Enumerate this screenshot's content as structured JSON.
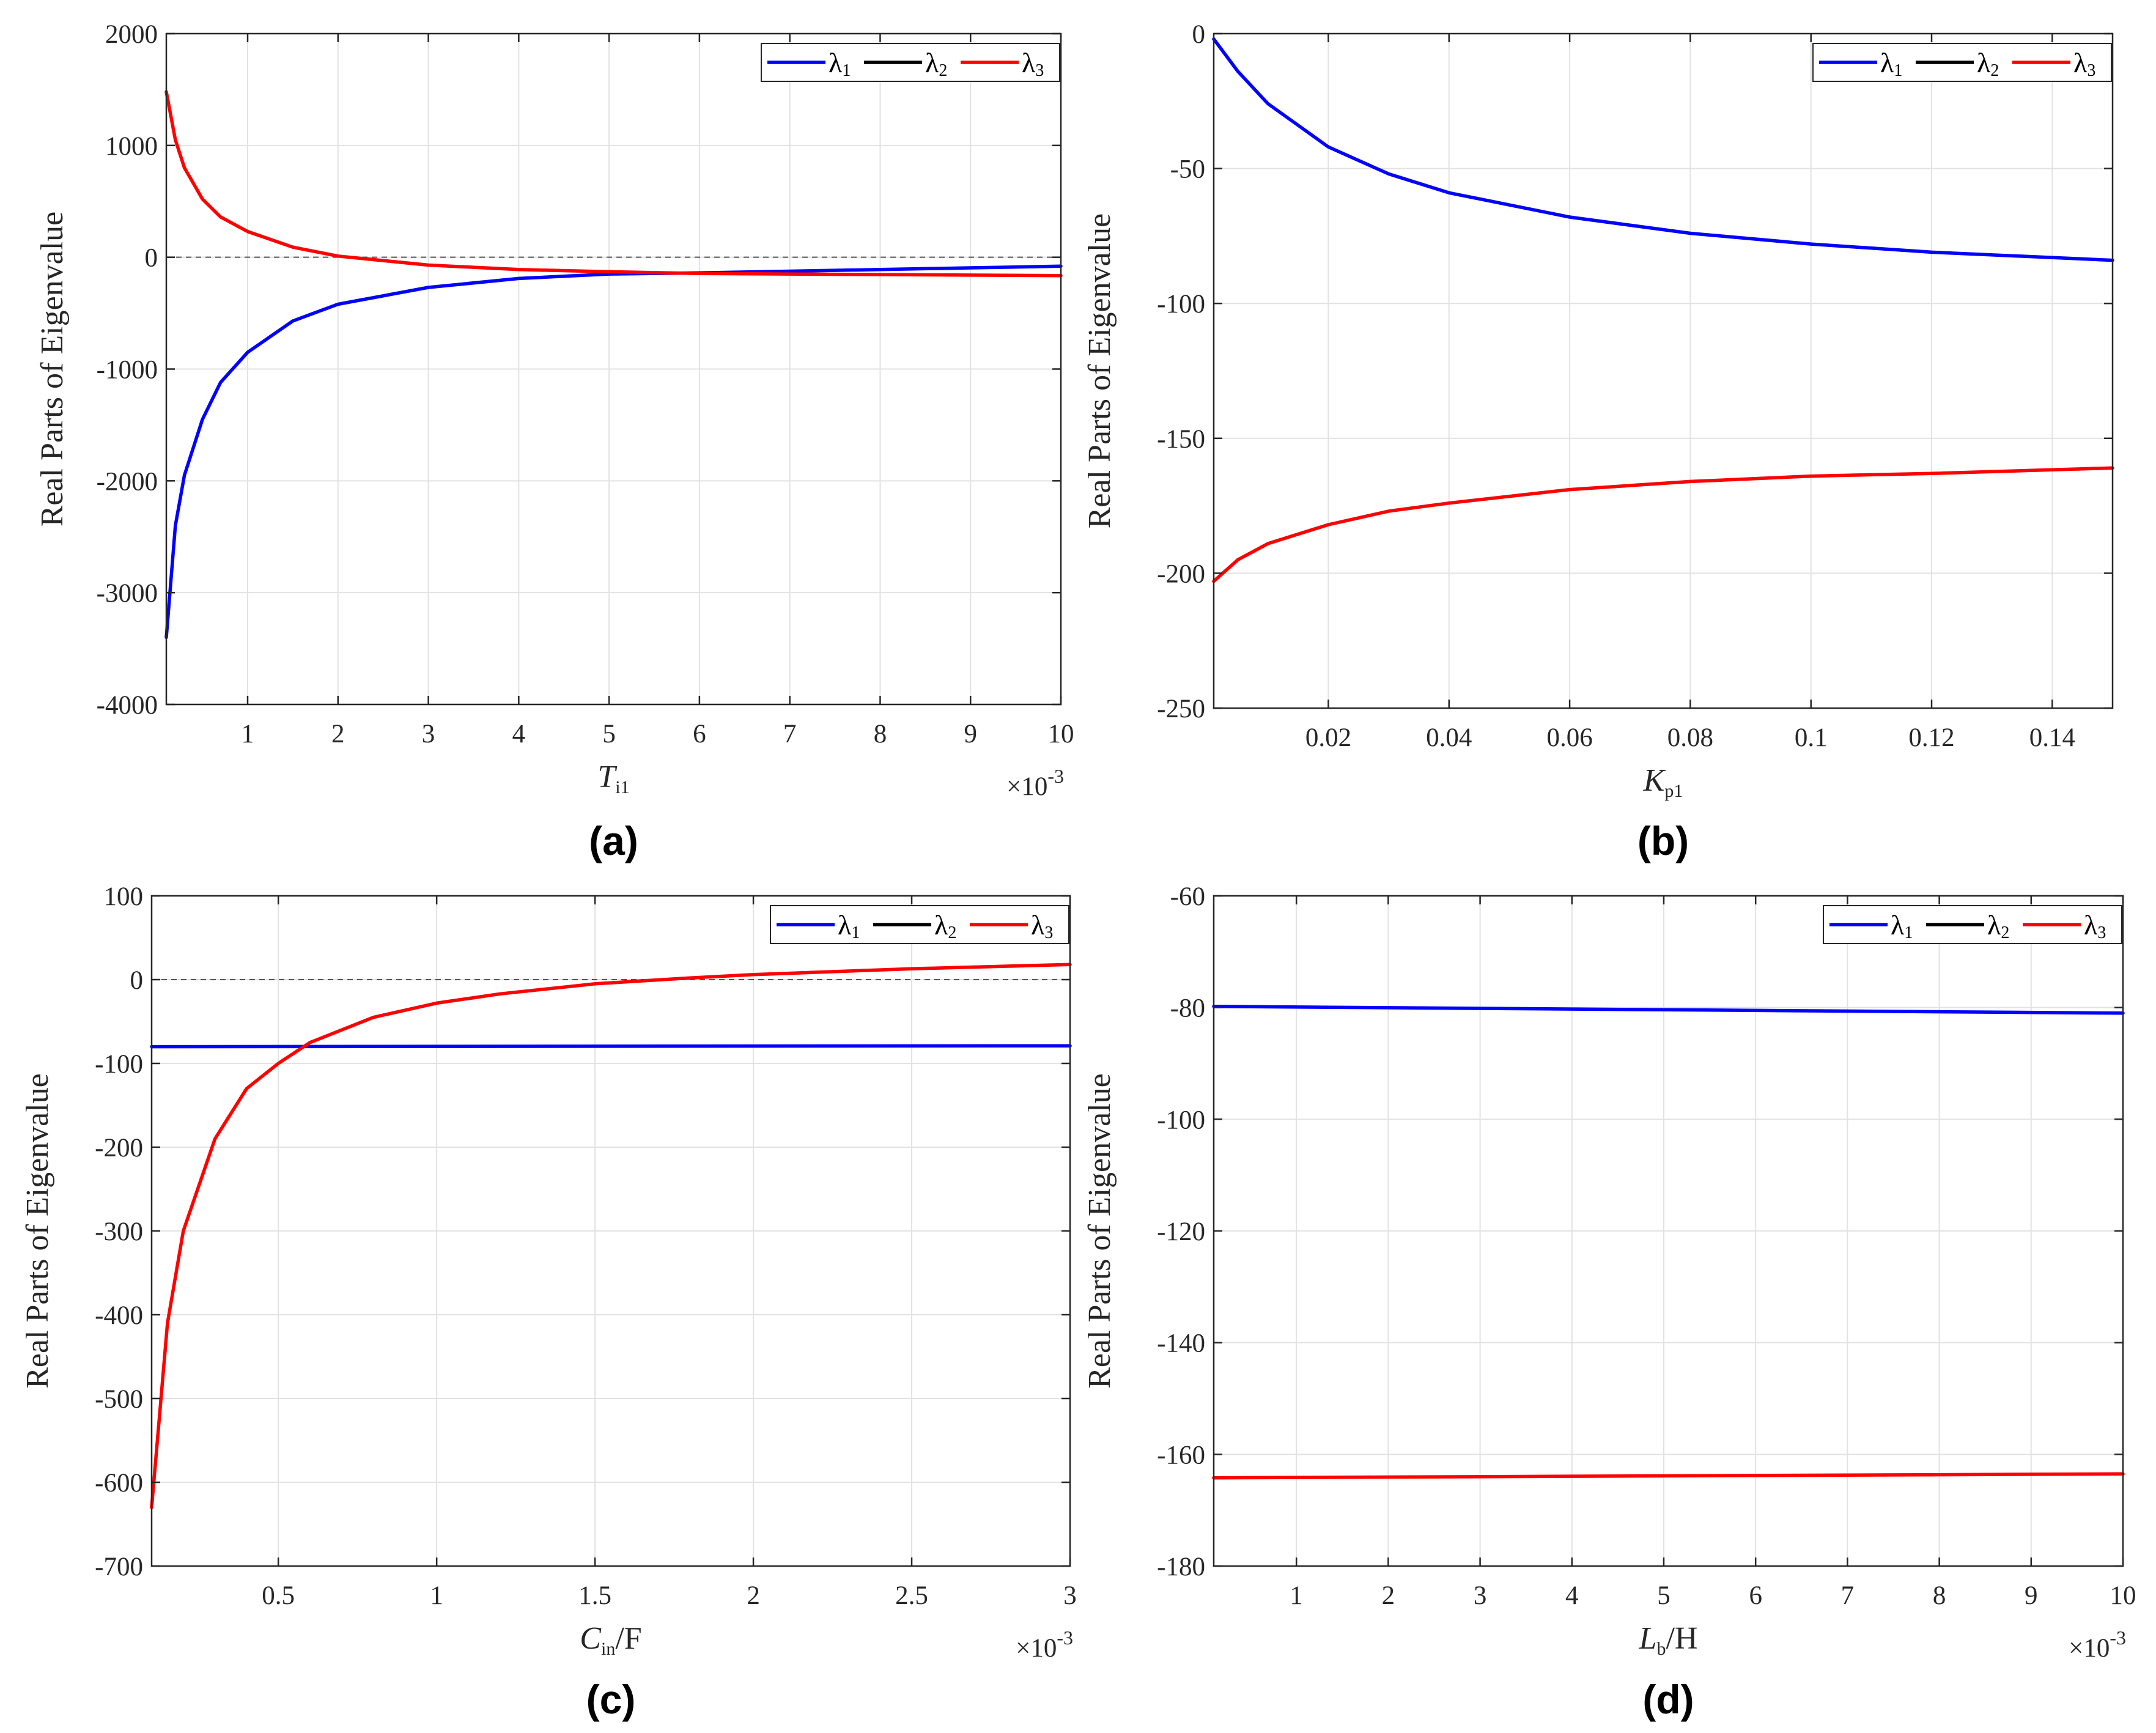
{
  "figure": {
    "y_axis_label": "Real Parts of Eigenvalue",
    "colors": {
      "lambda1": "#0000ff",
      "lambda2": "#000000",
      "lambda3": "#ff0000"
    }
  },
  "chart_data": [
    {
      "type": "line",
      "caption": "(a)",
      "xlabel": {
        "symbol": "T",
        "subscript": "i1",
        "unit": ""
      },
      "ylabel": "Real Parts of Eigenvalue",
      "xlim": [
        0.1,
        10
      ],
      "ylim": [
        -4000,
        2000
      ],
      "x_ticks": [
        1,
        2,
        3,
        4,
        5,
        6,
        7,
        8,
        9,
        10
      ],
      "x_tick_labels": [
        "1",
        "2",
        "3",
        "4",
        "5",
        "6",
        "7",
        "8",
        "9",
        "10"
      ],
      "y_ticks": [
        -4000,
        -3000,
        -2000,
        -1000,
        0,
        1000,
        2000
      ],
      "y_tick_labels": [
        "-4000",
        "-3000",
        "-2000",
        "-1000",
        "0",
        "1000",
        "2000"
      ],
      "multiplier": {
        "base": "×10",
        "exponent": "-3"
      },
      "zero_line": true,
      "legend": {
        "placement": "top-right",
        "entries": [
          "λ1",
          "λ2",
          "λ3"
        ]
      },
      "series": [
        {
          "name": "λ1",
          "color": "#0000ff",
          "x": [
            0.1,
            0.2,
            0.3,
            0.5,
            0.7,
            1,
            1.5,
            2,
            3,
            4,
            5,
            6,
            7,
            8,
            9,
            10
          ],
          "values": [
            -3400,
            -2400,
            -1950,
            -1450,
            -1120,
            -850,
            -570,
            -420,
            -270,
            -190,
            -150,
            -140,
            -125,
            -110,
            -95,
            -80
          ]
        },
        {
          "name": "λ3",
          "color": "#ff0000",
          "x": [
            0.1,
            0.2,
            0.3,
            0.5,
            0.7,
            1,
            1.5,
            2,
            3,
            4,
            5,
            6,
            7,
            8,
            9,
            10
          ],
          "values": [
            1480,
            1050,
            800,
            520,
            360,
            230,
            90,
            10,
            -70,
            -110,
            -130,
            -145,
            -150,
            -155,
            -160,
            -165
          ]
        }
      ]
    },
    {
      "type": "line",
      "caption": "(b)",
      "xlabel": {
        "symbol": "K",
        "subscript": "p1",
        "unit": ""
      },
      "ylabel": "Real Parts of Eigenvalue",
      "xlim": [
        0.001,
        0.15
      ],
      "ylim": [
        -250,
        0
      ],
      "x_ticks": [
        0.02,
        0.04,
        0.06,
        0.08,
        0.1,
        0.12,
        0.14
      ],
      "x_tick_labels": [
        "0.02",
        "0.04",
        "0.06",
        "0.08",
        "0.1",
        "0.12",
        "0.14"
      ],
      "y_ticks": [
        -250,
        -200,
        -150,
        -100,
        -50,
        0
      ],
      "y_tick_labels": [
        "-250",
        "-200",
        "-150",
        "-100",
        "-50",
        "0"
      ],
      "multiplier": null,
      "zero_line": false,
      "legend": {
        "placement": "top-right",
        "entries": [
          "λ1",
          "λ2",
          "λ3"
        ]
      },
      "series": [
        {
          "name": "λ1",
          "color": "#0000ff",
          "x": [
            0.001,
            0.005,
            0.01,
            0.02,
            0.03,
            0.04,
            0.06,
            0.08,
            0.1,
            0.12,
            0.15
          ],
          "values": [
            -2,
            -14,
            -26,
            -42,
            -52,
            -59,
            -68,
            -74,
            -78,
            -81,
            -84
          ]
        },
        {
          "name": "λ3",
          "color": "#ff0000",
          "x": [
            0.001,
            0.005,
            0.01,
            0.02,
            0.03,
            0.04,
            0.06,
            0.08,
            0.1,
            0.12,
            0.15
          ],
          "values": [
            -203,
            -195,
            -189,
            -182,
            -177,
            -174,
            -169,
            -166,
            -164,
            -163,
            -161
          ]
        }
      ]
    },
    {
      "type": "line",
      "caption": "(c)",
      "xlabel": {
        "symbol": "C",
        "subscript": "in",
        "unit": "/F"
      },
      "ylabel": "Real Parts of Eigenvalue",
      "xlim": [
        0.1,
        3
      ],
      "ylim": [
        -700,
        100
      ],
      "x_ticks": [
        0.5,
        1,
        1.5,
        2,
        2.5,
        3
      ],
      "x_tick_labels": [
        "0.5",
        "1",
        "1.5",
        "2",
        "2.5",
        "3"
      ],
      "y_ticks": [
        -700,
        -600,
        -500,
        -400,
        -300,
        -200,
        -100,
        0,
        100
      ],
      "y_tick_labels": [
        "-700",
        "-600",
        "-500",
        "-400",
        "-300",
        "-200",
        "-100",
        "0",
        "100"
      ],
      "multiplier": {
        "base": "×10",
        "exponent": "-3"
      },
      "zero_line": true,
      "legend": {
        "placement": "top-right",
        "entries": [
          "λ1",
          "λ2",
          "λ3"
        ]
      },
      "series": [
        {
          "name": "λ1",
          "color": "#0000ff",
          "x": [
            0.1,
            3
          ],
          "values": [
            -80,
            -79
          ]
        },
        {
          "name": "λ3",
          "color": "#ff0000",
          "x": [
            0.1,
            0.15,
            0.2,
            0.3,
            0.4,
            0.5,
            0.6,
            0.8,
            1,
            1.2,
            1.5,
            1.8,
            2,
            2.5,
            3
          ],
          "values": [
            -630,
            -410,
            -300,
            -190,
            -130,
            -100,
            -75,
            -45,
            -28,
            -17,
            -5,
            2,
            6,
            13,
            18
          ]
        }
      ]
    },
    {
      "type": "line",
      "caption": "(d)",
      "xlabel": {
        "symbol": "L",
        "subscript": "b",
        "unit": "/H"
      },
      "ylabel": "Real Parts of Eigenvalue",
      "xlim": [
        0.1,
        10
      ],
      "ylim": [
        -180,
        -60
      ],
      "x_ticks": [
        1,
        2,
        3,
        4,
        5,
        6,
        7,
        8,
        9,
        10
      ],
      "x_tick_labels": [
        "1",
        "2",
        "3",
        "4",
        "5",
        "6",
        "7",
        "8",
        "9",
        "10"
      ],
      "y_ticks": [
        -180,
        -160,
        -140,
        -120,
        -100,
        -80,
        -60
      ],
      "y_tick_labels": [
        "-180",
        "-160",
        "-140",
        "-120",
        "-100",
        "-80",
        "-60"
      ],
      "multiplier": {
        "base": "×10",
        "exponent": "-3"
      },
      "zero_line": false,
      "legend": {
        "placement": "top-right",
        "entries": [
          "λ1",
          "λ2",
          "λ3"
        ]
      },
      "series": [
        {
          "name": "λ1",
          "color": "#0000ff",
          "x": [
            0.1,
            10
          ],
          "values": [
            -79.8,
            -81
          ]
        },
        {
          "name": "λ3",
          "color": "#ff0000",
          "x": [
            0.1,
            10
          ],
          "values": [
            -164.2,
            -163.5
          ]
        }
      ]
    }
  ]
}
